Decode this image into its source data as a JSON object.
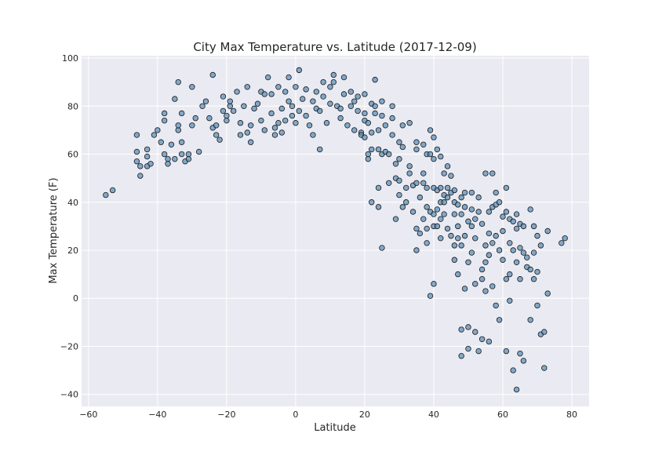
{
  "chart_data": {
    "type": "scatter",
    "title": "City Max Temperature vs. Latitude (2017-12-09)",
    "xlabel": "Latitude",
    "ylabel": "Max Temperature (F)",
    "xlim": [
      -62,
      85
    ],
    "ylim": [
      -45,
      101
    ],
    "x_ticks": [
      -60,
      -40,
      -20,
      0,
      20,
      40,
      60,
      80
    ],
    "y_ticks": [
      -40,
      -20,
      0,
      20,
      40,
      60,
      80,
      100
    ],
    "grid": true,
    "colors": {
      "point_fill": "#5a8fb8",
      "point_edge": "#1a1a1a",
      "plot_bg": "#eaeaf2",
      "grid": "#ffffff"
    },
    "points": [
      [
        -55,
        43
      ],
      [
        -53,
        45
      ],
      [
        -46,
        61
      ],
      [
        -46,
        57
      ],
      [
        -45,
        55
      ],
      [
        -45,
        51
      ],
      [
        -46,
        68
      ],
      [
        -43,
        59
      ],
      [
        -43,
        55
      ],
      [
        -42,
        56
      ],
      [
        -43,
        62
      ],
      [
        -41,
        68
      ],
      [
        -40,
        70
      ],
      [
        -39,
        65
      ],
      [
        -38,
        74
      ],
      [
        -38,
        77
      ],
      [
        -38,
        60
      ],
      [
        -37,
        58
      ],
      [
        -37,
        56
      ],
      [
        -36,
        64
      ],
      [
        -35,
        83
      ],
      [
        -35,
        58
      ],
      [
        -34,
        90
      ],
      [
        -34,
        70
      ],
      [
        -34,
        72
      ],
      [
        -33,
        65
      ],
      [
        -33,
        60
      ],
      [
        -33,
        77
      ],
      [
        -32,
        57
      ],
      [
        -31,
        58
      ],
      [
        -31,
        60
      ],
      [
        -30,
        88
      ],
      [
        -30,
        72
      ],
      [
        -29,
        75
      ],
      [
        -28,
        61
      ],
      [
        -27,
        80
      ],
      [
        -26,
        82
      ],
      [
        -25,
        75
      ],
      [
        -24,
        71
      ],
      [
        -24,
        93
      ],
      [
        -23,
        72
      ],
      [
        -23,
        68
      ],
      [
        -22,
        66
      ],
      [
        -21,
        84
      ],
      [
        -21,
        78
      ],
      [
        -20,
        74
      ],
      [
        -20,
        76
      ],
      [
        -19,
        80
      ],
      [
        -19,
        82
      ],
      [
        -18,
        78
      ],
      [
        -17,
        86
      ],
      [
        -16,
        73
      ],
      [
        -16,
        68
      ],
      [
        -15,
        80
      ],
      [
        -14,
        88
      ],
      [
        -14,
        69
      ],
      [
        -13,
        65
      ],
      [
        -13,
        72
      ],
      [
        -12,
        79
      ],
      [
        -11,
        81
      ],
      [
        -10,
        86
      ],
      [
        -10,
        74
      ],
      [
        -9,
        70
      ],
      [
        -9,
        85
      ],
      [
        -8,
        92
      ],
      [
        -7,
        77
      ],
      [
        -7,
        85
      ],
      [
        -6,
        68
      ],
      [
        -6,
        71
      ],
      [
        -5,
        88
      ],
      [
        -5,
        73
      ],
      [
        -4,
        79
      ],
      [
        -4,
        69
      ],
      [
        -3,
        86
      ],
      [
        -3,
        74
      ],
      [
        -2,
        92
      ],
      [
        -2,
        82
      ],
      [
        -1,
        80
      ],
      [
        -1,
        76
      ],
      [
        0,
        88
      ],
      [
        0,
        73
      ],
      [
        1,
        95
      ],
      [
        1,
        78
      ],
      [
        2,
        83
      ],
      [
        3,
        87
      ],
      [
        3,
        76
      ],
      [
        4,
        72
      ],
      [
        5,
        82
      ],
      [
        5,
        68
      ],
      [
        6,
        86
      ],
      [
        6,
        79
      ],
      [
        7,
        78
      ],
      [
        7,
        62
      ],
      [
        8,
        90
      ],
      [
        8,
        84
      ],
      [
        9,
        73
      ],
      [
        10,
        88
      ],
      [
        10,
        81
      ],
      [
        11,
        93
      ],
      [
        11,
        90
      ],
      [
        12,
        80
      ],
      [
        13,
        75
      ],
      [
        13,
        79
      ],
      [
        14,
        85
      ],
      [
        14,
        92
      ],
      [
        15,
        72
      ],
      [
        16,
        86
      ],
      [
        16,
        80
      ],
      [
        17,
        70
      ],
      [
        17,
        82
      ],
      [
        18,
        78
      ],
      [
        18,
        84
      ],
      [
        19,
        69
      ],
      [
        19,
        68
      ],
      [
        20,
        85
      ],
      [
        20,
        77
      ],
      [
        20,
        74
      ],
      [
        20,
        67
      ],
      [
        21,
        73
      ],
      [
        21,
        58
      ],
      [
        21,
        60
      ],
      [
        22,
        81
      ],
      [
        22,
        69
      ],
      [
        22,
        62
      ],
      [
        22,
        40
      ],
      [
        23,
        91
      ],
      [
        23,
        80
      ],
      [
        23,
        77
      ],
      [
        24,
        62
      ],
      [
        24,
        70
      ],
      [
        24,
        46
      ],
      [
        24,
        38
      ],
      [
        25,
        60
      ],
      [
        25,
        82
      ],
      [
        25,
        76
      ],
      [
        25,
        21
      ],
      [
        26,
        61
      ],
      [
        26,
        72
      ],
      [
        27,
        48
      ],
      [
        27,
        60
      ],
      [
        28,
        80
      ],
      [
        28,
        68
      ],
      [
        28,
        75
      ],
      [
        29,
        56
      ],
      [
        29,
        50
      ],
      [
        29,
        33
      ],
      [
        30,
        65
      ],
      [
        30,
        58
      ],
      [
        30,
        49
      ],
      [
        30,
        43
      ],
      [
        31,
        72
      ],
      [
        31,
        63
      ],
      [
        31,
        38
      ],
      [
        32,
        46
      ],
      [
        32,
        40
      ],
      [
        33,
        73
      ],
      [
        33,
        52
      ],
      [
        33,
        55
      ],
      [
        34,
        47
      ],
      [
        34,
        36
      ],
      [
        35,
        65
      ],
      [
        35,
        62
      ],
      [
        35,
        48
      ],
      [
        35,
        29
      ],
      [
        35,
        20
      ],
      [
        36,
        42
      ],
      [
        36,
        27
      ],
      [
        37,
        64
      ],
      [
        37,
        52
      ],
      [
        37,
        48
      ],
      [
        37,
        33
      ],
      [
        38,
        60
      ],
      [
        38,
        46
      ],
      [
        38,
        38
      ],
      [
        38,
        29
      ],
      [
        38,
        23
      ],
      [
        39,
        70
      ],
      [
        39,
        60
      ],
      [
        39,
        36
      ],
      [
        39,
        1
      ],
      [
        40,
        67
      ],
      [
        40,
        58
      ],
      [
        40,
        46
      ],
      [
        40,
        35
      ],
      [
        40,
        30
      ],
      [
        40,
        6
      ],
      [
        41,
        62
      ],
      [
        41,
        45
      ],
      [
        41,
        37
      ],
      [
        41,
        30
      ],
      [
        42,
        59
      ],
      [
        42,
        46
      ],
      [
        42,
        40
      ],
      [
        42,
        33
      ],
      [
        42,
        25
      ],
      [
        43,
        52
      ],
      [
        43,
        43
      ],
      [
        43,
        40
      ],
      [
        43,
        35
      ],
      [
        44,
        55
      ],
      [
        44,
        46
      ],
      [
        44,
        42
      ],
      [
        44,
        29
      ],
      [
        45,
        51
      ],
      [
        45,
        44
      ],
      [
        45,
        26
      ],
      [
        46,
        45
      ],
      [
        46,
        40
      ],
      [
        46,
        35
      ],
      [
        46,
        22
      ],
      [
        46,
        16
      ],
      [
        47,
        39
      ],
      [
        47,
        30
      ],
      [
        47,
        25
      ],
      [
        47,
        10
      ],
      [
        48,
        42
      ],
      [
        48,
        35
      ],
      [
        48,
        22
      ],
      [
        48,
        -13
      ],
      [
        48,
        -24
      ],
      [
        49,
        44
      ],
      [
        49,
        38
      ],
      [
        49,
        26
      ],
      [
        49,
        4
      ],
      [
        50,
        32
      ],
      [
        50,
        15
      ],
      [
        50,
        -12
      ],
      [
        50,
        -21
      ],
      [
        51,
        44
      ],
      [
        51,
        37
      ],
      [
        51,
        30
      ],
      [
        51,
        19
      ],
      [
        52,
        33
      ],
      [
        52,
        25
      ],
      [
        52,
        6
      ],
      [
        52,
        -14
      ],
      [
        53,
        42
      ],
      [
        53,
        36
      ],
      [
        53,
        -22
      ],
      [
        54,
        31
      ],
      [
        54,
        12
      ],
      [
        54,
        8
      ],
      [
        54,
        -17
      ],
      [
        55,
        52
      ],
      [
        55,
        22
      ],
      [
        55,
        15
      ],
      [
        55,
        3
      ],
      [
        56,
        36
      ],
      [
        56,
        27
      ],
      [
        56,
        18
      ],
      [
        56,
        -18
      ],
      [
        57,
        52
      ],
      [
        57,
        38
      ],
      [
        57,
        23
      ],
      [
        57,
        5
      ],
      [
        58,
        44
      ],
      [
        58,
        39
      ],
      [
        58,
        26
      ],
      [
        58,
        -3
      ],
      [
        59,
        40
      ],
      [
        59,
        20
      ],
      [
        59,
        -9
      ],
      [
        60,
        34
      ],
      [
        60,
        28
      ],
      [
        60,
        16
      ],
      [
        61,
        46
      ],
      [
        61,
        36
      ],
      [
        61,
        8
      ],
      [
        61,
        -22
      ],
      [
        62,
        33
      ],
      [
        62,
        23
      ],
      [
        62,
        10
      ],
      [
        62,
        -1
      ],
      [
        63,
        32
      ],
      [
        63,
        20
      ],
      [
        63,
        -30
      ],
      [
        64,
        35
      ],
      [
        64,
        29
      ],
      [
        64,
        15
      ],
      [
        64,
        -38
      ],
      [
        65,
        31
      ],
      [
        65,
        21
      ],
      [
        65,
        8
      ],
      [
        65,
        -23
      ],
      [
        66,
        30
      ],
      [
        66,
        19
      ],
      [
        66,
        -26
      ],
      [
        67,
        17
      ],
      [
        67,
        13
      ],
      [
        68,
        37
      ],
      [
        68,
        12
      ],
      [
        68,
        -9
      ],
      [
        69,
        30
      ],
      [
        69,
        19
      ],
      [
        69,
        8
      ],
      [
        70,
        26
      ],
      [
        70,
        11
      ],
      [
        70,
        -3
      ],
      [
        71,
        22
      ],
      [
        71,
        -15
      ],
      [
        72,
        -14
      ],
      [
        72,
        -29
      ],
      [
        73,
        28
      ],
      [
        73,
        2
      ],
      [
        77,
        23
      ],
      [
        78,
        25
      ]
    ]
  }
}
